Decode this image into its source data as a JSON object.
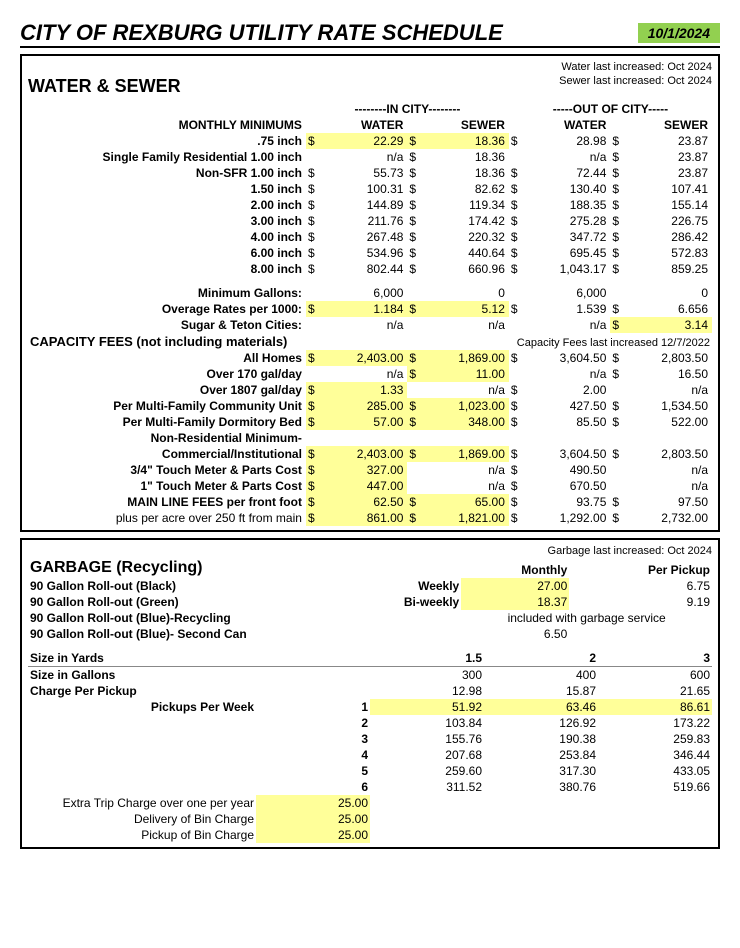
{
  "header": {
    "title": "CITY OF REXBURG UTILITY RATE SCHEDULE",
    "date": "10/1/2024"
  },
  "water_sewer": {
    "notes": {
      "water": "Water last increased: Oct 2024",
      "sewer": "Sewer last increased: Oct 2024",
      "capacity": "Capacity Fees last increased 12/7/2022"
    },
    "title": "WATER & SEWER",
    "group_in": "--------IN CITY--------",
    "group_out": "-----OUT OF CITY-----",
    "col_water": "WATER",
    "col_sewer": "SEWER",
    "minimums_label": "MONTHLY MINIMUMS",
    "rows": [
      {
        "label": ".75 inch",
        "iw": "22.29",
        "is": "18.36",
        "ow": "28.98",
        "os": "23.87",
        "hl": true
      },
      {
        "label": "Single Family Residential 1.00 inch",
        "iw": "n/a",
        "is": "18.36",
        "ow": "n/a",
        "os": "23.87",
        "no_d_iw": true,
        "no_d_ow": true
      },
      {
        "label": "Non-SFR 1.00 inch",
        "iw": "55.73",
        "is": "18.36",
        "ow": "72.44",
        "os": "23.87"
      },
      {
        "label": "1.50 inch",
        "iw": "100.31",
        "is": "82.62",
        "ow": "130.40",
        "os": "107.41"
      },
      {
        "label": "2.00 inch",
        "iw": "144.89",
        "is": "119.34",
        "ow": "188.35",
        "os": "155.14"
      },
      {
        "label": "3.00 inch",
        "iw": "211.76",
        "is": "174.42",
        "ow": "275.28",
        "os": "226.75"
      },
      {
        "label": "4.00 inch",
        "iw": "267.48",
        "is": "220.32",
        "ow": "347.72",
        "os": "286.42"
      },
      {
        "label": "6.00 inch",
        "iw": "534.96",
        "is": "440.64",
        "ow": "695.45",
        "os": "572.83"
      },
      {
        "label": "8.00 inch",
        "iw": "802.44",
        "is": "660.96",
        "ow": "1,043.17",
        "os": "859.25"
      }
    ],
    "min_gallons": {
      "label": "Minimum Gallons:",
      "iw": "6,000",
      "is": "0",
      "ow": "6,000",
      "os": "0"
    },
    "overage": {
      "label": "Overage Rates per 1000:",
      "iw": "1.184",
      "is": "5.12",
      "ow": "1.539",
      "os": "6.656",
      "hl": true
    },
    "sugar_teton": {
      "label": "Sugar & Teton Cities:",
      "iw": "n/a",
      "is": "n/a",
      "ow": "n/a",
      "os": "3.14",
      "hl_os": true
    },
    "capacity_label": "CAPACITY FEES (not including materials)",
    "capacity_rows": [
      {
        "label": "All Homes",
        "iw": "2,403.00",
        "is": "1,869.00",
        "ow": "3,604.50",
        "os": "2,803.50",
        "hl": true
      },
      {
        "label": "Over 170 gal/day",
        "iw": "n/a",
        "is": "11.00",
        "ow": "n/a",
        "os": "16.50",
        "hl_is": true,
        "no_d_iw": true,
        "no_d_ow": true
      },
      {
        "label": "Over 1807 gal/day",
        "iw": "1.33",
        "is": "n/a",
        "ow": "2.00",
        "os": "n/a",
        "hl_iw": true,
        "no_d_os": true
      },
      {
        "label": "Per Multi-Family Community Unit",
        "iw": "285.00",
        "is": "1,023.00",
        "ow": "427.50",
        "os": "1,534.50",
        "hl": true
      },
      {
        "label": "Per Multi-Family Dormitory Bed",
        "iw": "57.00",
        "is": "348.00",
        "ow": "85.50",
        "os": "522.00",
        "hl": true
      },
      {
        "label": "Non-Residential Minimum-",
        "blank": true
      },
      {
        "label": "Commercial/Institutional",
        "iw": "2,403.00",
        "is": "1,869.00",
        "ow": "3,604.50",
        "os": "2,803.50",
        "hl": true
      },
      {
        "label": "3/4\" Touch Meter & Parts Cost",
        "iw": "327.00",
        "is": "n/a",
        "ow": "490.50",
        "os": "n/a",
        "hl_iw": true,
        "no_d_os": true
      },
      {
        "label": "1\" Touch Meter & Parts Cost",
        "iw": "447.00",
        "is": "n/a",
        "ow": "670.50",
        "os": "n/a",
        "hl_iw": true,
        "no_d_os": true
      },
      {
        "label": "MAIN LINE FEES per front foot",
        "iw": "62.50",
        "is": "65.00",
        "ow": "93.75",
        "os": "97.50",
        "hl": true
      },
      {
        "label": "plus per acre over 250 ft from main",
        "iw": "861.00",
        "is": "1,821.00",
        "ow": "1,292.00",
        "os": "2,732.00",
        "hl": true,
        "thin": true
      }
    ]
  },
  "garbage": {
    "note": "Garbage last increased: Oct 2024",
    "title": "GARBAGE (Recycling)",
    "col_monthly": "Monthly",
    "col_perpickup": "Per Pickup",
    "rows": [
      {
        "label": "90 Gallon Roll-out (Black)",
        "freq": "Weekly",
        "monthly": "27.00",
        "per": "6.75",
        "hl": true
      },
      {
        "label": "90 Gallon Roll-out (Green)",
        "freq": "Bi-weekly",
        "monthly": "18.37",
        "per": "9.19",
        "hl": true
      },
      {
        "label": "90 Gallon Roll-out (Blue)-Recycling",
        "span_text": "included with garbage service"
      },
      {
        "label": "90 Gallon Roll-out (Blue)- Second Can",
        "monthly": "6.50"
      }
    ],
    "size_yards_label": "Size in Yards",
    "size_yards": [
      "1.5",
      "2",
      "3"
    ],
    "size_gallons_label": "Size in Gallons",
    "size_gallons": [
      "300",
      "400",
      "600"
    ],
    "charge_label": "Charge Per Pickup",
    "charge": [
      "12.98",
      "15.87",
      "21.65"
    ],
    "pickups_label": "Pickups Per Week",
    "pickups": [
      {
        "n": "1",
        "v": [
          "51.92",
          "63.46",
          "86.61"
        ],
        "hl": true
      },
      {
        "n": "2",
        "v": [
          "103.84",
          "126.92",
          "173.22"
        ]
      },
      {
        "n": "3",
        "v": [
          "155.76",
          "190.38",
          "259.83"
        ]
      },
      {
        "n": "4",
        "v": [
          "207.68",
          "253.84",
          "346.44"
        ]
      },
      {
        "n": "5",
        "v": [
          "259.60",
          "317.30",
          "433.05"
        ]
      },
      {
        "n": "6",
        "v": [
          "311.52",
          "380.76",
          "519.66"
        ]
      }
    ],
    "extra": [
      {
        "label": "Extra Trip Charge over one per year",
        "v": "25.00"
      },
      {
        "label": "Delivery of Bin Charge",
        "v": "25.00"
      },
      {
        "label": "Pickup of Bin Charge",
        "v": "25.00"
      }
    ]
  },
  "colors": {
    "highlight": "#ffff99",
    "green": "#92d050"
  }
}
